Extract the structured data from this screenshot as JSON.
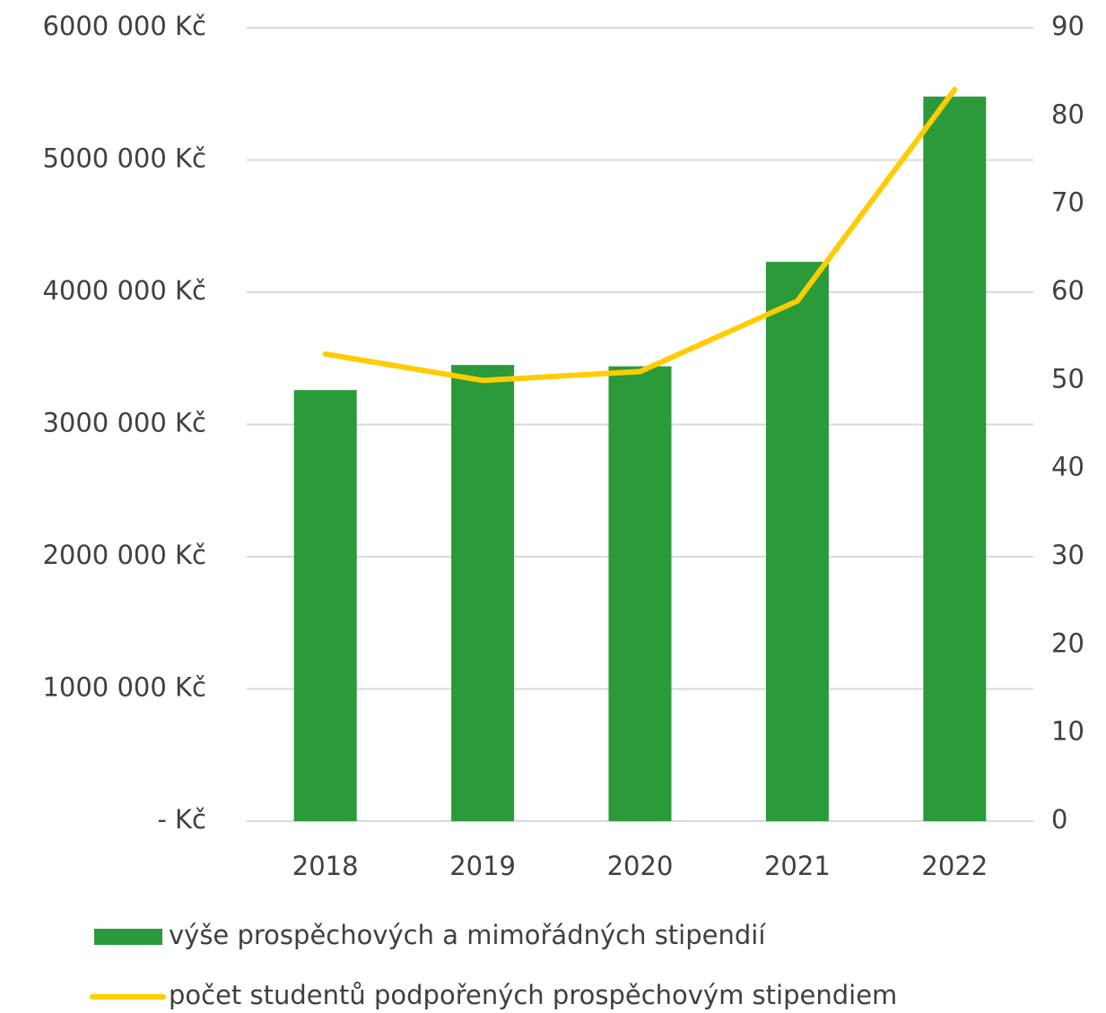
{
  "chart_data": {
    "type": "bar",
    "categories": [
      "2018",
      "2019",
      "2020",
      "2021",
      "2022"
    ],
    "series": [
      {
        "name": "výše prospěchových a mimořádných stipendií",
        "type": "bar",
        "color": "#2a9a3a",
        "values": [
          3260000,
          3450000,
          3440000,
          4230000,
          5480000
        ]
      },
      {
        "name": "počet studentů podpořených prospěchovým stipendiem",
        "type": "line",
        "axis": "y2",
        "color": "#ffcc00",
        "values": [
          53,
          50,
          51,
          59,
          83
        ]
      }
    ],
    "ylim": [
      0,
      6000000
    ],
    "yticks": [
      {
        "value": 0,
        "label": "- Kč"
      },
      {
        "value": 1000000,
        "label": "1000 000 Kč"
      },
      {
        "value": 2000000,
        "label": "2000 000 Kč"
      },
      {
        "value": 3000000,
        "label": "3000 000 Kč"
      },
      {
        "value": 4000000,
        "label": "4000 000 Kč"
      },
      {
        "value": 5000000,
        "label": "5000 000 Kč"
      },
      {
        "value": 6000000,
        "label": "6000 000 Kč"
      }
    ],
    "y2lim": [
      0,
      90
    ],
    "y2ticks": [
      0,
      10,
      20,
      30,
      40,
      50,
      60,
      70,
      80,
      90
    ],
    "grid": true,
    "legend": "bottom"
  }
}
